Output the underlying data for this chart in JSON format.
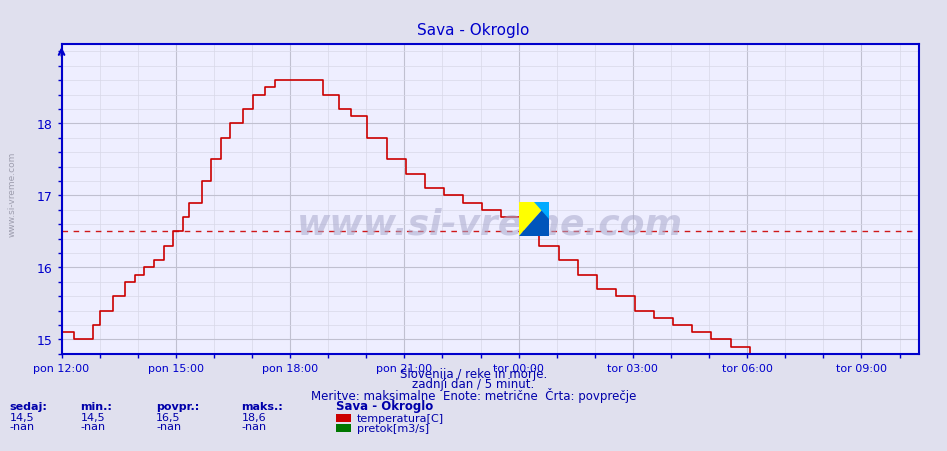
{
  "title": "Sava - Okroglo",
  "title_color": "#0000cc",
  "bg_color": "#e0e0ee",
  "plot_bg_color": "#eeeeff",
  "grid_color_major": "#c0c0d0",
  "grid_color_minor": "#d8d8e8",
  "line_color": "#cc0000",
  "axis_color": "#0000cc",
  "tick_color": "#0000cc",
  "avg_line_color": "#cc0000",
  "avg_line_value": 16.5,
  "ylim": [
    14.8,
    19.1
  ],
  "yticks": [
    15,
    16,
    17,
    18
  ],
  "xtick_positions": [
    0,
    3,
    6,
    9,
    12,
    15,
    18,
    21
  ],
  "xlabel_texts": [
    "pon 12:00",
    "pon 15:00",
    "pon 18:00",
    "pon 21:00",
    "tor 00:00",
    "tor 03:00",
    "tor 06:00",
    "tor 09:00"
  ],
  "xlim": [
    0,
    22.5
  ],
  "footer_line1": "Slovenija / reke in morje.",
  "footer_line2": "zadnji dan / 5 minut.",
  "footer_line3": "Meritve: maksimalne  Enote: metrične  Črta: povprečje",
  "footer_color": "#0000aa",
  "stat_label_color": "#0000aa",
  "legend_title": "Sava - Okroglo",
  "legend_items": [
    {
      "label": "temperatura[C]",
      "color": "#cc0000"
    },
    {
      "label": "pretok[m3/s]",
      "color": "#007700"
    }
  ],
  "stats_labels": [
    "sedaj:",
    "min.:",
    "povpr.:",
    "maks.:"
  ],
  "stats_values": [
    "14,5",
    "14,5",
    "16,5",
    "18,6"
  ],
  "stats_nan": [
    "-nan",
    "-nan",
    "-nan",
    "-nan"
  ],
  "watermark_text": "www.si-vreme.com",
  "sidebar_text": "www.si-vreme.com",
  "n_points": 270
}
